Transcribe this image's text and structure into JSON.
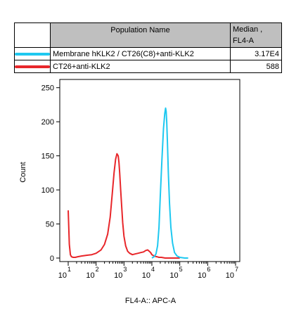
{
  "legend": {
    "header_name": "Population Name",
    "header_median_line1": "Median ,",
    "header_median_line2": "FL4-A",
    "rows": [
      {
        "name": "Membrane hKLK2 / CT26(C8)+anti-KLK2",
        "median": "3.17E4",
        "color": "#1ec8f0"
      },
      {
        "name": "CT26+anti-KLK2",
        "median": "588",
        "color": "#e8262a"
      }
    ]
  },
  "chart_data": {
    "type": "line",
    "title": "",
    "xlabel": "FL4-A:: APC-A",
    "ylabel": "Count",
    "x_scale": "log",
    "xlim": [
      10,
      10000000
    ],
    "ylim": [
      0,
      260
    ],
    "y_ticks": [
      0,
      50,
      100,
      150,
      200,
      250
    ],
    "x_ticks": [
      {
        "base": "10",
        "exp": "1"
      },
      {
        "base": "10",
        "exp": "2"
      },
      {
        "base": "10",
        "exp": "3"
      },
      {
        "base": "10",
        "exp": "4"
      },
      {
        "base": "10",
        "exp": "5"
      },
      {
        "base": "10",
        "exp": "6"
      },
      {
        "base": "10",
        "exp": "7"
      }
    ],
    "series": [
      {
        "name": "CT26+anti-KLK2",
        "color": "#e8262a",
        "x": [
          10,
          11,
          12,
          13,
          15,
          18,
          22,
          30,
          45,
          70,
          100,
          150,
          200,
          260,
          320,
          380,
          440,
          500,
          560,
          620,
          660,
          700,
          760,
          830,
          900,
          1000,
          1150,
          1350,
          1600,
          2000,
          2500,
          3200,
          4000,
          5000,
          6000,
          7000,
          8000,
          9000,
          10000,
          12000,
          15000,
          18000,
          22000,
          30000,
          45000,
          70000,
          100000
        ],
        "y": [
          70,
          20,
          5,
          2,
          1,
          1,
          2,
          3,
          4,
          5,
          7,
          12,
          20,
          35,
          60,
          95,
          125,
          145,
          153,
          150,
          140,
          125,
          100,
          75,
          52,
          32,
          18,
          10,
          7,
          5,
          6,
          7,
          8,
          9,
          11,
          12,
          10,
          8,
          5,
          3,
          2,
          1,
          1,
          0,
          0,
          0,
          0
        ]
      },
      {
        "name": "Membrane hKLK2 / CT26(C8)+anti-KLK2",
        "color": "#1ec8f0",
        "x": [
          10000,
          12000,
          14000,
          16000,
          18000,
          20000,
          23000,
          26000,
          29000,
          31000,
          32500,
          34000,
          36000,
          39000,
          43000,
          48000,
          55000,
          65000,
          80000,
          100000,
          150000,
          200000
        ],
        "y": [
          0,
          2,
          6,
          18,
          45,
          90,
          145,
          190,
          212,
          220,
          215,
          200,
          170,
          125,
          80,
          45,
          22,
          8,
          3,
          1,
          0,
          0
        ]
      }
    ]
  }
}
